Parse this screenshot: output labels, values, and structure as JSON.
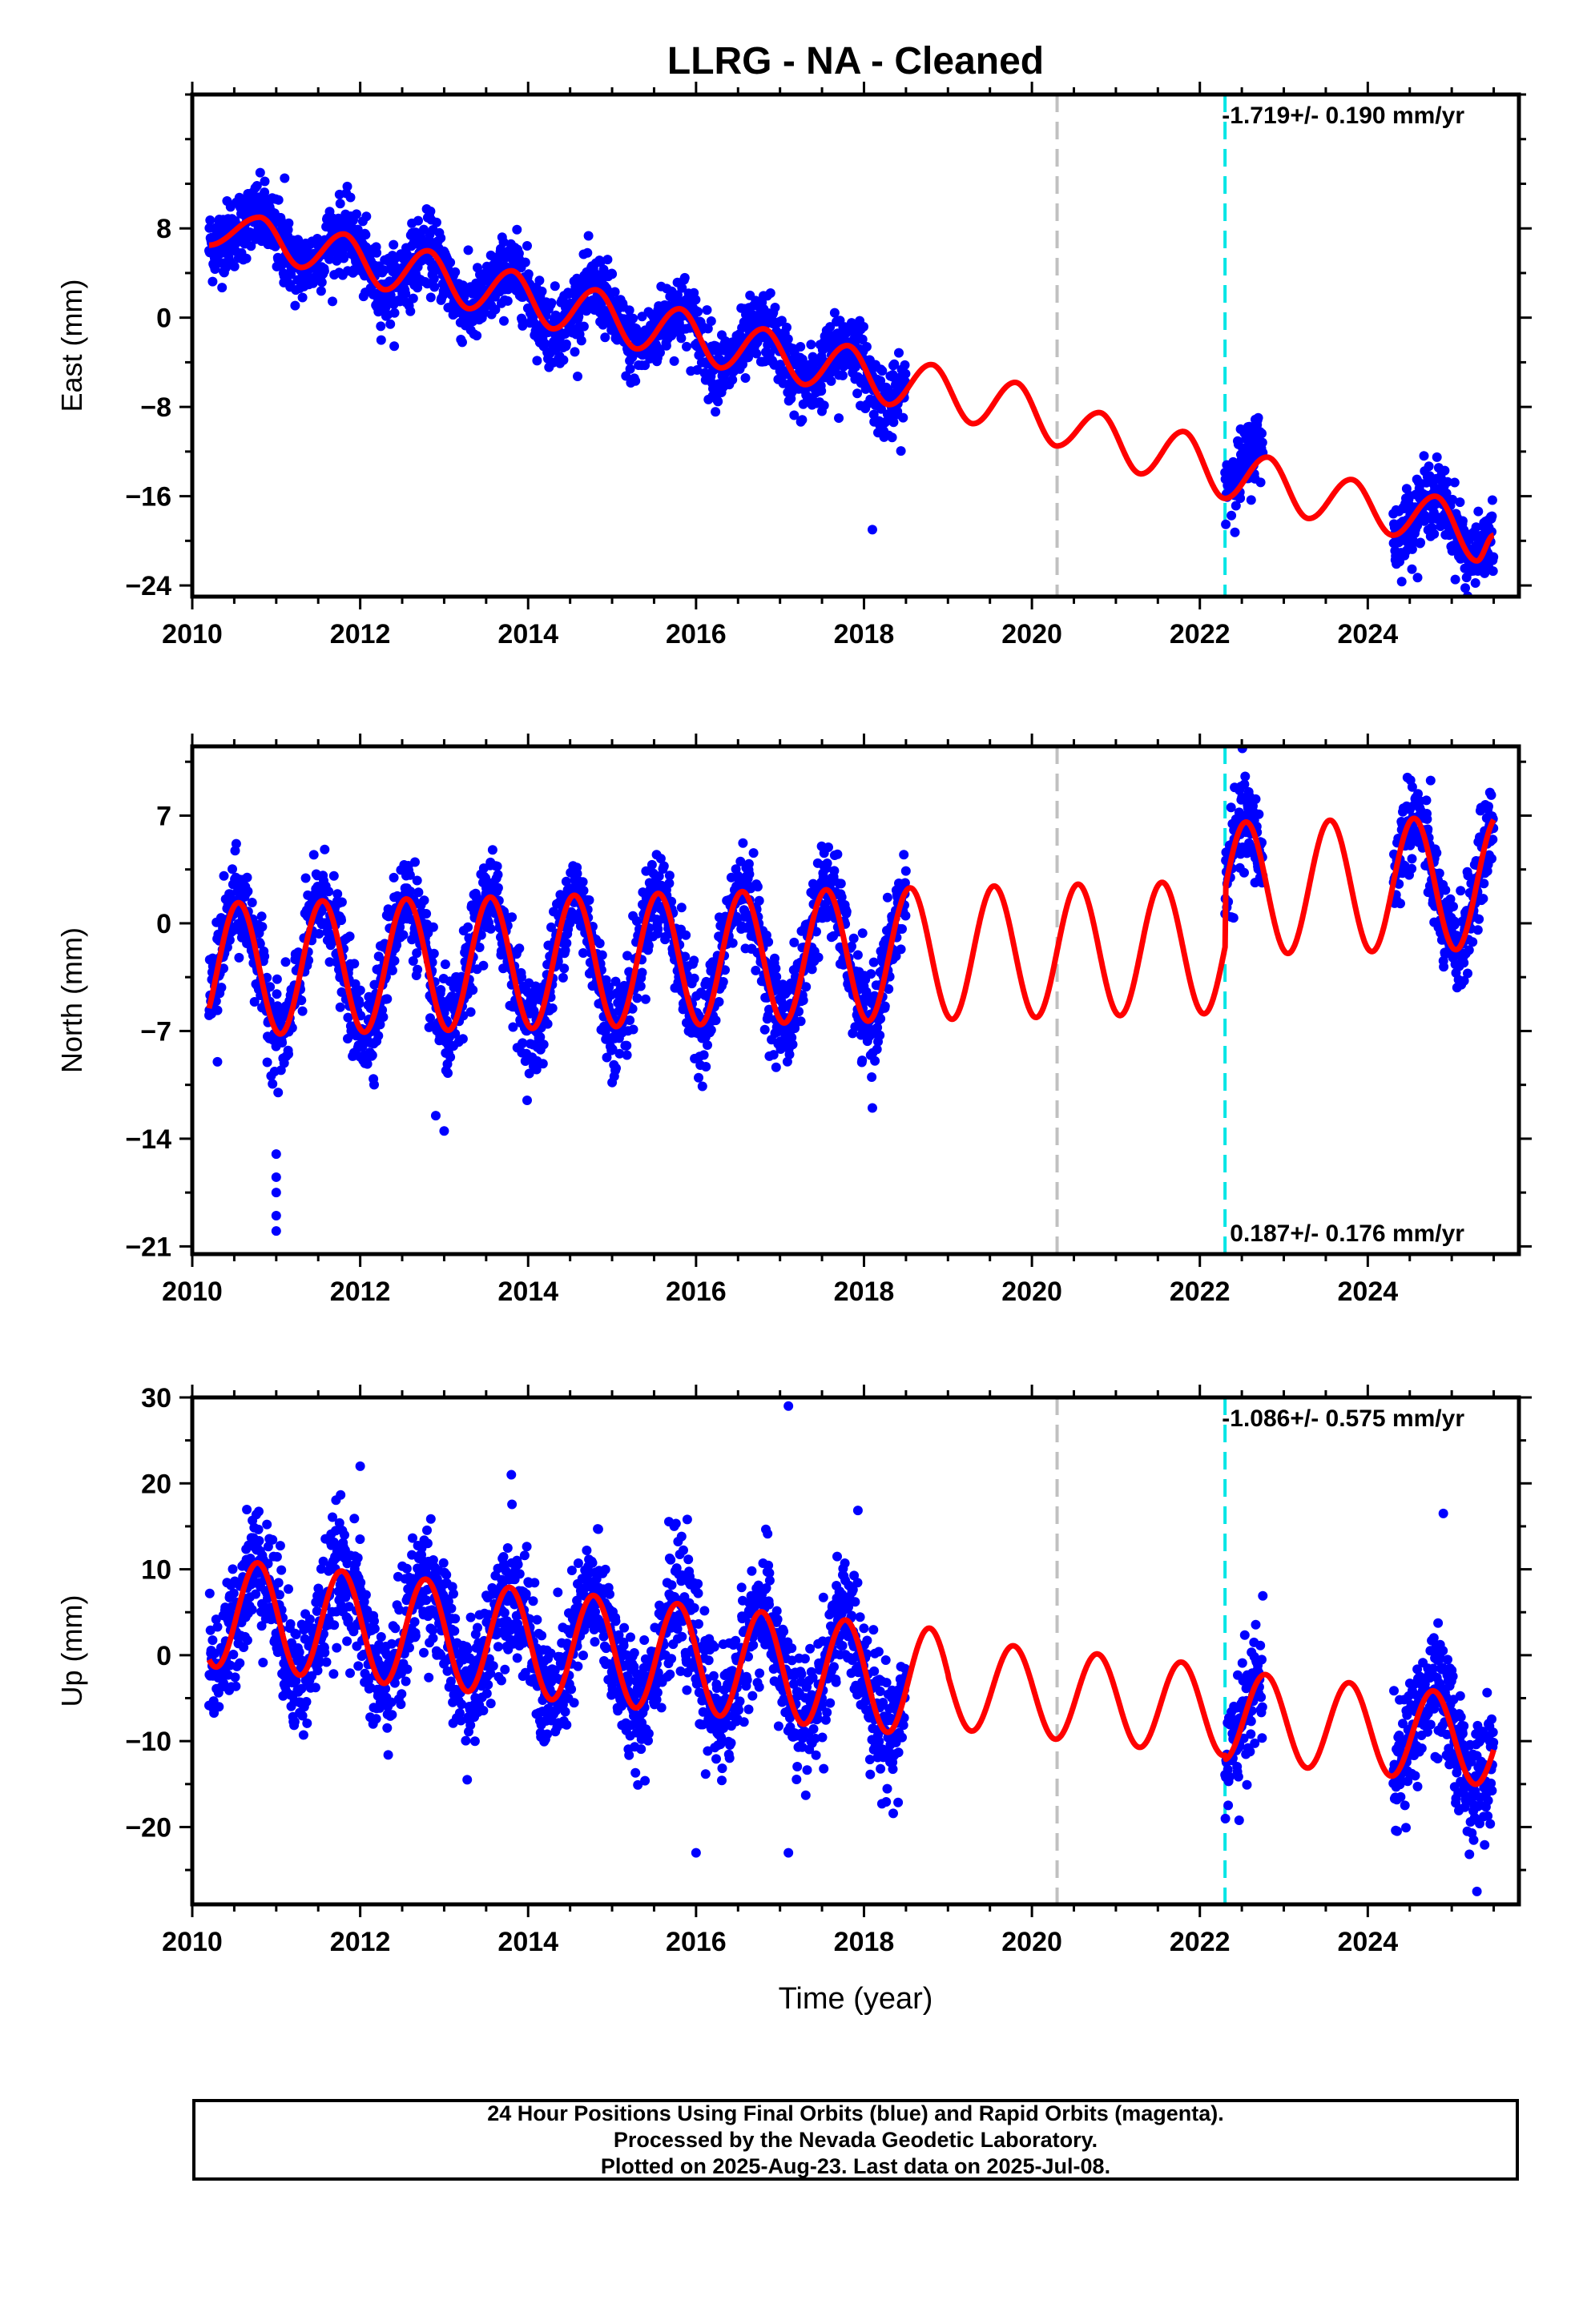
{
  "figure": {
    "title": "LLRG  - NA - Cleaned",
    "footer": [
      "24 Hour Positions Using Final Orbits (blue) and Rapid Orbits (magenta).",
      "Processed by the Nevada Geodetic Laboratory.",
      "Plotted on 2025-Aug-23. Last data on 2025-Jul-08."
    ],
    "colors": {
      "points": "#0000ff",
      "model": "#ff0000",
      "gray_event": "#c0c0c0",
      "cyan_event": "#00e5e5"
    }
  },
  "chart_data": [
    {
      "type": "scatter",
      "ylabel": "East (mm)",
      "xlabel": "",
      "rate_text": "-1.719+/- 0.190 mm/yr",
      "rate_position": "top-right",
      "xlim": [
        2010.0,
        2025.8
      ],
      "ylim": [
        -25,
        20
      ],
      "xticks": [
        2010,
        2012,
        2014,
        2016,
        2018,
        2020,
        2022,
        2024
      ],
      "yticks": [
        8,
        0,
        -8,
        -16,
        -24
      ],
      "events": [
        {
          "x": 2020.3,
          "style": "gray-dashed"
        },
        {
          "x": 2022.3,
          "style": "cyan-dashed"
        }
      ],
      "data_periods": [
        [
          2010.2,
          2018.5
        ],
        [
          2022.3,
          2022.75
        ],
        [
          2024.3,
          2025.5
        ]
      ],
      "model": {
        "offsets": [
          {
            "x": 2020.3,
            "dy": -3.0
          }
        ],
        "series": [
          {
            "name": "",
            "x": [
              2010.2,
              2010.8,
              2011.3,
              2011.8,
              2012.3,
              2012.8,
              2013.3,
              2013.8,
              2014.3,
              2014.8,
              2015.3,
              2015.8,
              2016.3,
              2016.8,
              2017.3,
              2017.8,
              2018.3,
              2018.8,
              2019.3,
              2019.8,
              2020.3,
              2020.8,
              2021.3,
              2021.8,
              2022.3,
              2022.8,
              2023.3,
              2023.8,
              2024.3,
              2024.8,
              2025.3,
              2025.5
            ],
            "y": [
              6.5,
              9.0,
              4.5,
              7.5,
              2.5,
              6.0,
              0.8,
              4.2,
              -1.0,
              2.5,
              -2.8,
              0.8,
              -4.5,
              -1.0,
              -6.0,
              -2.5,
              -7.8,
              -4.2,
              -9.5,
              -5.8,
              -11.5,
              -8.5,
              -14.0,
              -10.2,
              -16.2,
              -12.5,
              -18.0,
              -14.5,
              -19.5,
              -16.0,
              -21.8,
              -19.5
            ]
          }
        ]
      },
      "samples": [
        {
          "period": 0,
          "min": -10,
          "max": 12
        },
        {
          "period": 1,
          "min": -17,
          "max": -8
        },
        {
          "period": 2,
          "min": -24,
          "max": -14
        }
      ],
      "outliers": [
        {
          "x": 2011.1,
          "y": 12.5
        },
        {
          "x": 2018.1,
          "y": -19.0
        },
        {
          "x": 2017.7,
          "y": -9.0
        }
      ]
    },
    {
      "type": "scatter",
      "ylabel": "North (mm)",
      "xlabel": "",
      "rate_text": "0.187+/- 0.176 mm/yr",
      "rate_position": "bottom-right",
      "xlim": [
        2010.0,
        2025.8
      ],
      "ylim": [
        -21.5,
        11.5
      ],
      "xticks": [
        2010,
        2012,
        2014,
        2016,
        2018,
        2020,
        2022,
        2024
      ],
      "yticks": [
        7,
        0,
        -7,
        -14,
        -21
      ],
      "events": [
        {
          "x": 2020.3,
          "style": "gray-dashed"
        },
        {
          "x": 2022.3,
          "style": "cyan-dashed"
        }
      ],
      "data_periods": [
        [
          2010.2,
          2018.5
        ],
        [
          2022.3,
          2022.75
        ],
        [
          2024.3,
          2025.5
        ]
      ],
      "model": {
        "amplitude": 4.3,
        "phase_peak": 0.55,
        "trend": 0.187,
        "offset_2020": 0.0,
        "start_value": -3.5
      },
      "outliers": [
        {
          "x": 2010.3,
          "y": -9.0
        },
        {
          "x": 2011.0,
          "y": -15.0
        },
        {
          "x": 2011.0,
          "y": -16.5
        },
        {
          "x": 2011.0,
          "y": -17.5
        },
        {
          "x": 2011.0,
          "y": -19.0
        },
        {
          "x": 2011.0,
          "y": -20.0
        },
        {
          "x": 2012.9,
          "y": -12.5
        },
        {
          "x": 2013.0,
          "y": -13.5
        },
        {
          "x": 2014.1,
          "y": -9.5
        },
        {
          "x": 2018.1,
          "y": -12.0
        }
      ]
    },
    {
      "type": "scatter",
      "ylabel": "Up (mm)",
      "xlabel": "Time (year)",
      "rate_text": "-1.086+/- 0.575 mm/yr",
      "rate_position": "top-right",
      "xlim": [
        2010.0,
        2025.8
      ],
      "ylim": [
        -29,
        30
      ],
      "xticks": [
        2010,
        2012,
        2014,
        2016,
        2018,
        2020,
        2022,
        2024
      ],
      "yticks": [
        30,
        20,
        10,
        0,
        -10,
        -20
      ],
      "events": [
        {
          "x": 2020.3,
          "style": "gray-dashed"
        },
        {
          "x": 2022.3,
          "style": "cyan-dashed"
        }
      ],
      "data_periods": [
        [
          2010.2,
          2018.5
        ],
        [
          2022.3,
          2022.75
        ],
        [
          2024.3,
          2025.5
        ]
      ],
      "outliers": [
        {
          "x": 2017.1,
          "y": 29.0
        },
        {
          "x": 2016.0,
          "y": -23.0
        },
        {
          "x": 2017.1,
          "y": -23.0
        },
        {
          "x": 2025.3,
          "y": -27.5
        },
        {
          "x": 2024.9,
          "y": 16.5
        },
        {
          "x": 2012.0,
          "y": 22.0
        },
        {
          "x": 2013.8,
          "y": 21.0
        }
      ]
    }
  ]
}
